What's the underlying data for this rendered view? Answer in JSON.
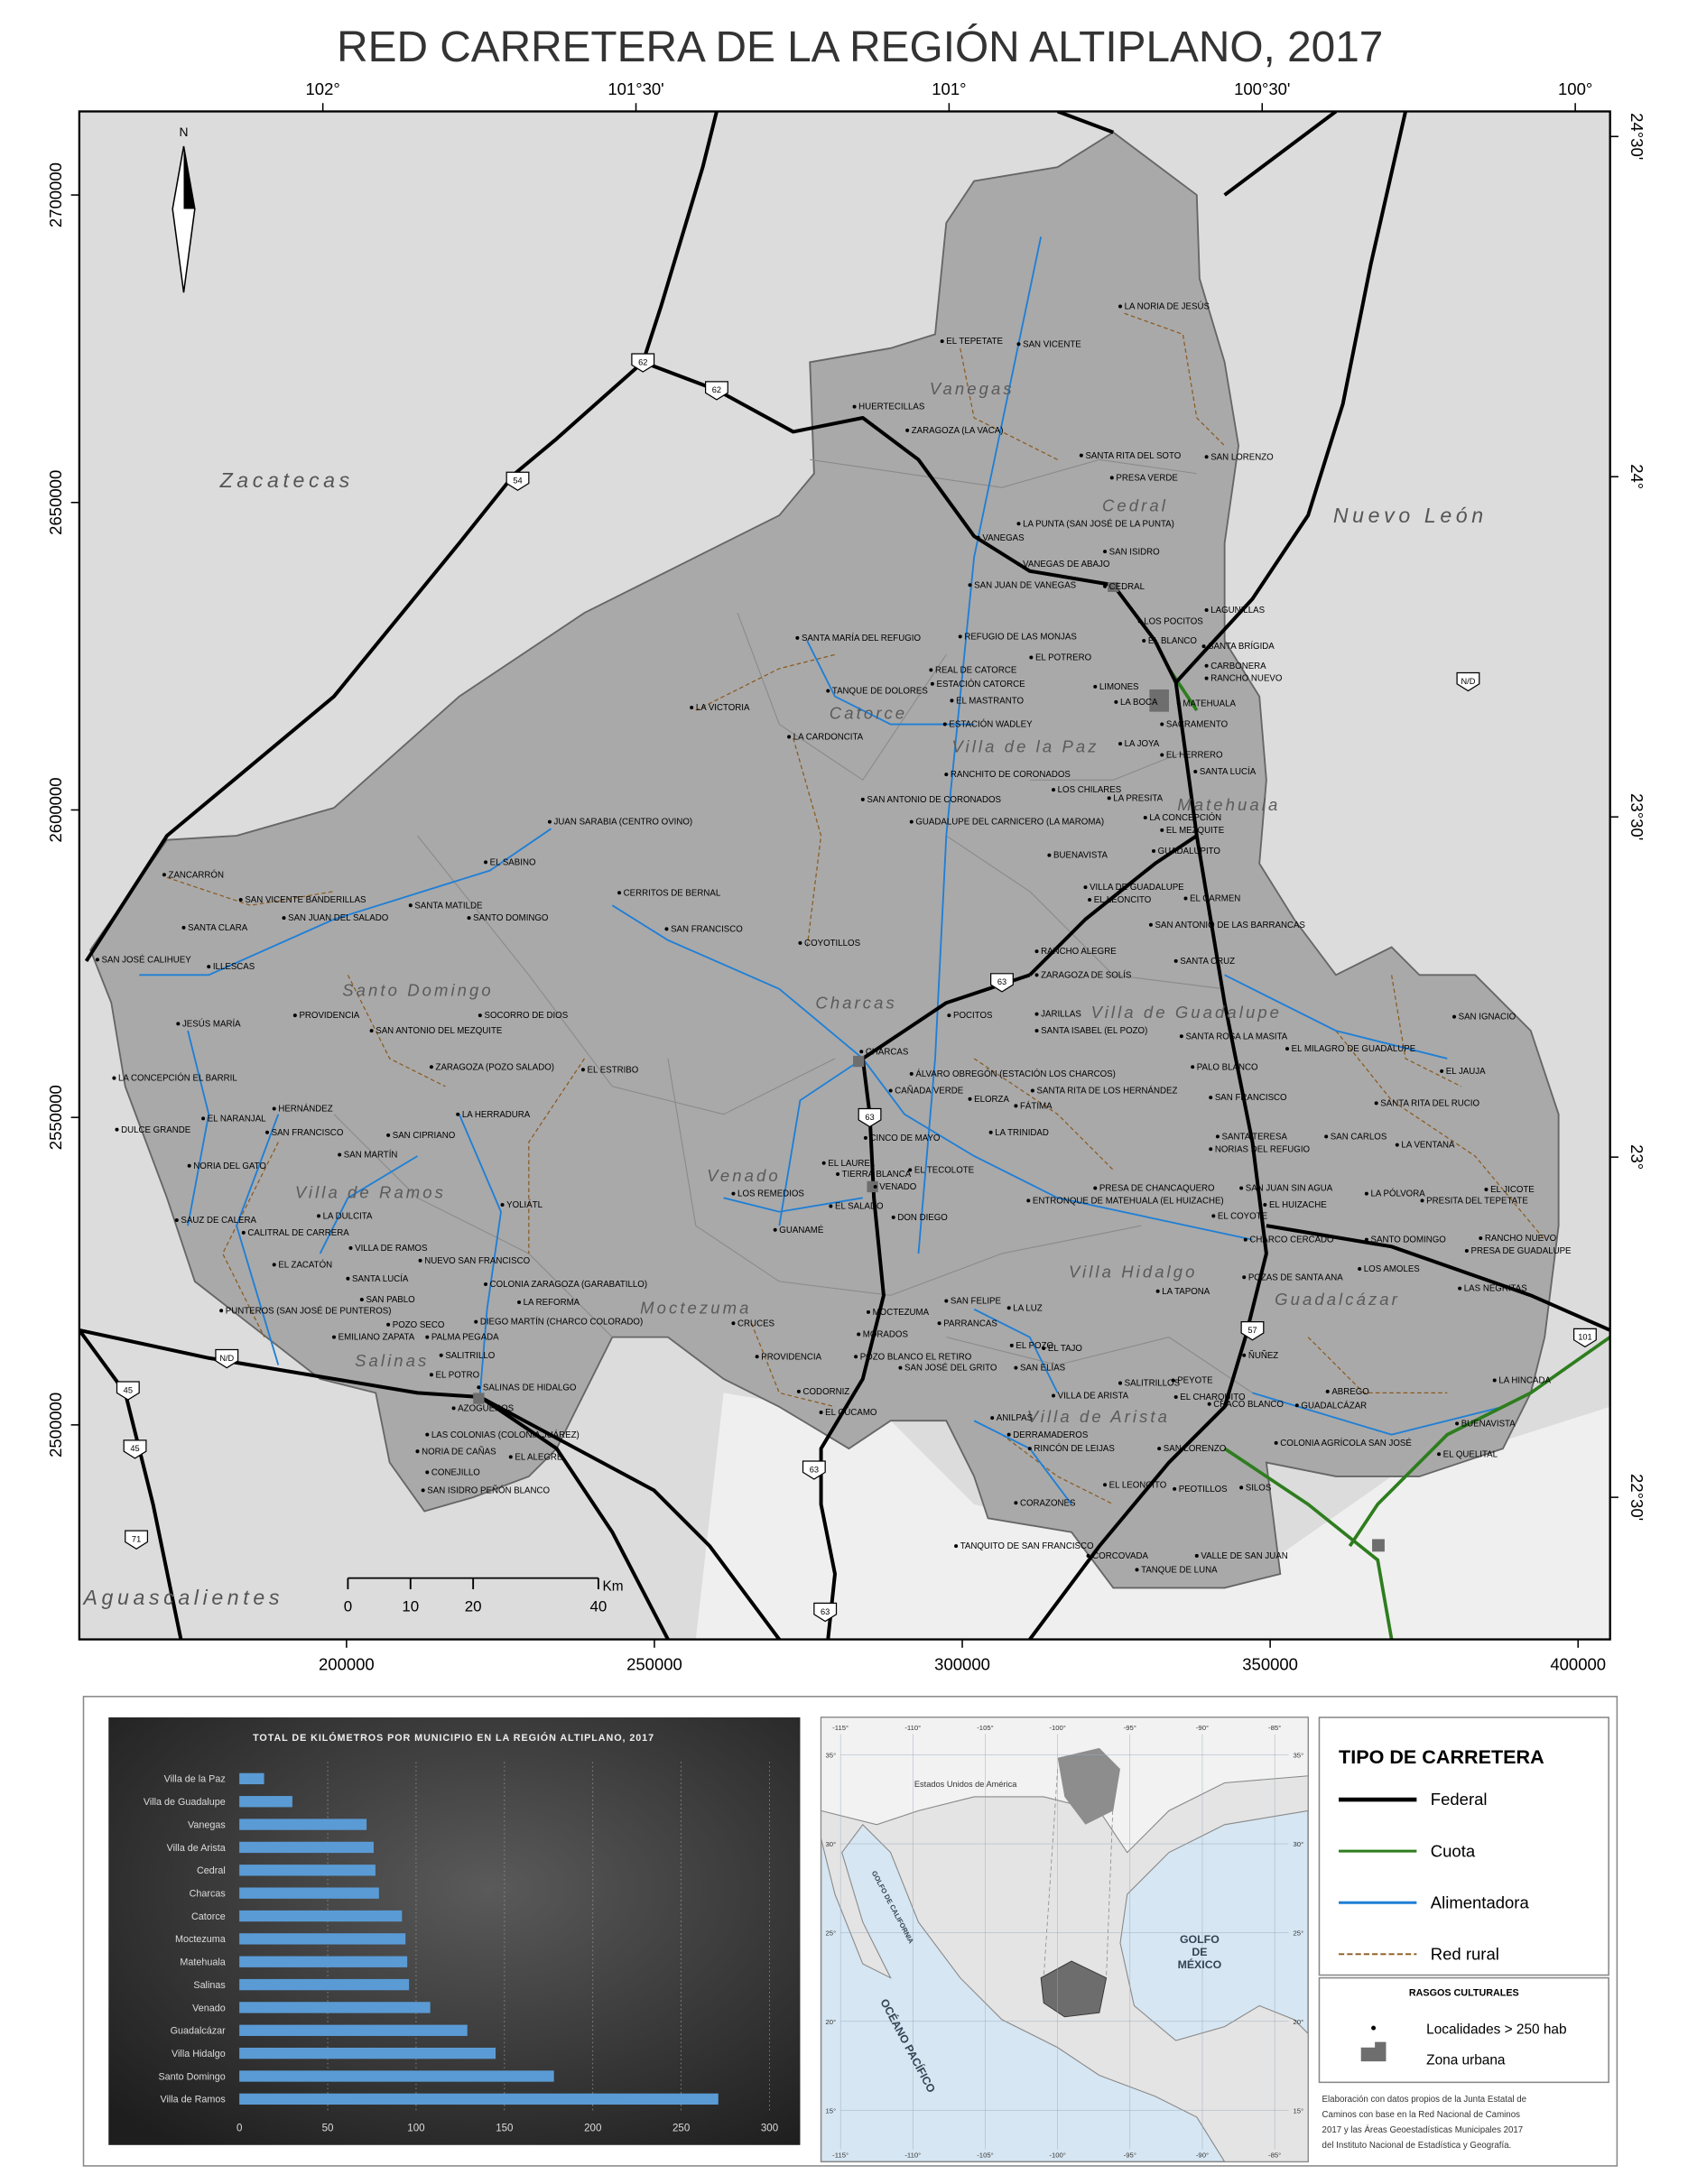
{
  "title": "RED CARRETERA DE LA REGIÓN ALTIPLANO, 2017",
  "map": {
    "lon_ticks": [
      {
        "value": -102,
        "label": "102°"
      },
      {
        "value": -101.5,
        "label": "101°30'"
      },
      {
        "value": -101,
        "label": "101°"
      },
      {
        "value": -100.5,
        "label": "100°30'"
      },
      {
        "value": -100,
        "label": "100°"
      }
    ],
    "lat_ticks": [
      {
        "value": 24.5,
        "label": "24°30'"
      },
      {
        "value": 24,
        "label": "24°"
      },
      {
        "value": 23.5,
        "label": "23°30'"
      },
      {
        "value": 23,
        "label": "23°"
      },
      {
        "value": 22.5,
        "label": "22°30'"
      }
    ],
    "easting_ticks": [
      200000,
      250000,
      300000,
      350000,
      400000
    ],
    "northing_ticks": [
      2500000,
      2550000,
      2600000,
      2650000,
      2700000
    ],
    "north_label": "N",
    "states": [
      "Zacatecas",
      "Nuevo León",
      "Aguascalientes"
    ],
    "municipalities": [
      "Vanegas",
      "Cedral",
      "Catorce",
      "Villa de la Paz",
      "Matehuala",
      "Santo Domingo",
      "Charcas",
      "Villa de Guadalupe",
      "Venado",
      "Villa de Ramos",
      "Moctezuma",
      "Villa Hidalgo",
      "Guadalcázar",
      "Salinas",
      "Villa de Arista"
    ],
    "shields": [
      "62",
      "62",
      "54",
      "63",
      "63",
      "63",
      "63",
      "57",
      "101",
      "45",
      "45",
      "71",
      "N/D",
      "N/D"
    ],
    "localities": [
      "LA NORIA DE JESÚS",
      "EL TEPETATE",
      "SAN VICENTE",
      "HUERTECILLAS",
      "ZARAGOZA (LA VACA)",
      "SANTA RITA DEL SOTO",
      "SAN LORENZO",
      "PRESA VERDE",
      "LA PUNTA (SAN JOSÉ DE LA PUNTA)",
      "VANEGAS",
      "SAN ISIDRO",
      "VANEGAS DE ABAJO",
      "SAN JUAN DE VANEGAS",
      "CEDRAL",
      "LAGUNILLAS",
      "LOS POCITOS",
      "SANTA MARÍA DEL REFUGIO",
      "REFUGIO DE LAS MONJAS",
      "EL BLANCO",
      "SANTA BRÍGIDA",
      "EL POTRERO",
      "CARBONERA",
      "REAL DE CATORCE",
      "RANCHO NUEVO",
      "ESTACIÓN CATORCE",
      "LIMONES",
      "TANQUE DE DOLORES",
      "EL MASTRANTO",
      "LA BOCA",
      "MATEHUALA",
      "LA VICTORIA",
      "ESTACIÓN WADLEY",
      "SACRAMENTO",
      "LA CARDONCITA",
      "LA JOYA",
      "EL HERRERO",
      "RANCHITO DE CORONADOS",
      "SANTA LUCÍA",
      "LOS CHILARES",
      "SAN ANTONIO DE CORONADOS",
      "LA PRESITA",
      "LA CONCEPCIÓN",
      "JUAN SARABIA (CENTRO OVINO)",
      "GUADALUPE DEL CARNICERO (LA MAROMA)",
      "EL MEZQUITE",
      "BUENAVISTA",
      "GUADALUPITO",
      "EL SABINO",
      "ZANCARRÓN",
      "VILLA DE GUADALUPE",
      "EL LEONCITO",
      "EL CARMEN",
      "CERRITOS DE BERNAL",
      "SAN VICENTE BANDERILLAS",
      "SANTA MATILDE",
      "SAN JUAN DEL SALADO",
      "SANTO DOMINGO",
      "SANTA CLARA",
      "SAN ANTONIO DE LAS BARRANCAS",
      "SAN FRANCISCO",
      "COYOTILLOS",
      "RANCHO ALEGRE",
      "SAN JOSÉ CALIHUEY",
      "ILLESCAS",
      "SANTA CRUZ",
      "ZARAGOZA DE SOLÍS",
      "POCITOS",
      "JARILLAS",
      "PROVIDENCIA",
      "SOCORRO DE DIOS",
      "SAN IGNACIO",
      "JESÚS MARÍA",
      "SAN ANTONIO DEL MEZQUITE",
      "SANTA ISABEL (EL POZO)",
      "SANTA ROSA LA MASITA",
      "CHARCAS",
      "EL MILAGRO DE GUADALUPE",
      "EL JAUJA",
      "ZARAGOZA (POZO SALADO)",
      "EL ESTRIBO",
      "PALO BLANCO",
      "LA CONCEPCIÓN EL BARRIL",
      "ÁLVARO OBREGÓN (ESTACIÓN LOS CHARCOS)",
      "CAÑADA VERDE",
      "SANTA RITA DE LOS HERNÁNDEZ",
      "SAN FRANCISCO",
      "SANTA RITA DEL RUCIO",
      "ELORZA",
      "FÁTIMA",
      "HERNÁNDEZ",
      "LA HERRADURA",
      "EL NARANJAL",
      "DULCE GRANDE",
      "SAN FRANCISCO",
      "SAN CIPRIANO",
      "LA TRINIDAD",
      "CINCO DE MAYO",
      "SANTA TERESA",
      "SAN CARLOS",
      "NORIAS DEL REFUGIO",
      "LA VENTANA",
      "SAN MARTÍN",
      "NORIA DEL GATO",
      "EL LAUREL",
      "TIERRA BLANCA",
      "EL TECOLOTE",
      "VENADO",
      "LOS REMEDIOS",
      "PRESA DE CHANCAQUERO",
      "SAN JUAN SIN AGUA",
      "LA PÓLVORA",
      "EL JICOTE",
      "PRESITA DEL TEPETATE",
      "ENTRONQUE DE MATEHUALA (EL HUIZACHE)",
      "EL HUIZACHE",
      "YOLIÁTL",
      "EL SALADO",
      "EL COYOTE",
      "DON DIEGO",
      "SAUZ DE CALERA",
      "LA DULCITA",
      "GUANAMÉ",
      "CALITRAL DE CARRERA",
      "CHARCO CERCADO",
      "SANTO DOMINGO",
      "RANCHO NUEVO",
      "PRESA DE GUADALUPE",
      "VILLA DE RAMOS",
      "NUEVO SAN FRANCISCO",
      "EL ZACATÓN",
      "LOS AMOLES",
      "POZAS DE SANTA ANA",
      "SANTA LUCÍA",
      "COLONIA ZARAGOZA (GARABATILLO)",
      "LAS NEGRITAS",
      "LA TAPONA",
      "SAN PABLO",
      "LA REFORMA",
      "SAN FELIPE",
      "PUNTEROS (SAN JOSÉ DE PUNTEROS)",
      "LA LUZ",
      "MOCTEZUMA",
      "POZO SECO",
      "DIEGO MARTÍN (CHARCO COLORADO)",
      "CRUCES",
      "PARRANCAS",
      "EMILIANO ZAPATA",
      "PALMA PEGADA",
      "MORADOS",
      "EL POZO",
      "EL TAJO",
      "ÑUÑEZ",
      "SALITRILLO",
      "PROVIDENCIA",
      "POZO BLANCO EL RETIRO",
      "SAN ELÍAS",
      "SAN JOSÉ DEL GRITO",
      "EL POTRO",
      "SALINAS DE HIDALGO",
      "CODORNIZ",
      "PEYOTE",
      "SALITRILLOS",
      "ABREGO",
      "LA HINCADA",
      "VILLA DE ARISTA",
      "EL CHARQUITO",
      "CHACO BLANCO",
      "GUADALCÁZAR",
      "AZOGUEROS",
      "EL CÚCAMO",
      "BUENAVISTA",
      "LAS COLONIAS (COLONIA JUÁREZ)",
      "DERRAMADEROS",
      "ANILPAS",
      "COLONIA AGRÍCOLA SAN JOSÉ",
      "NORIA DE CAÑAS",
      "EL ALEGRE",
      "RINCÓN DE LEIJAS",
      "SAN LORENZO",
      "EL QUELITAL",
      "CONEJILLO",
      "SAN ISIDRO PEÑÓN BLANCO",
      "EL LEONCITO",
      "PEOTILLOS",
      "SILOS",
      "CORAZONES",
      "TANQUITO DE SAN FRANCISCO",
      "CORCOVADA",
      "VALLE DE SAN JUAN",
      "TANQUE DE LUNA"
    ],
    "scale_bar": {
      "ticks": [
        0,
        10,
        20,
        40
      ],
      "unit": "Km"
    }
  },
  "chart_data": {
    "type": "bar",
    "orientation": "horizontal",
    "title": "TOTAL DE KILÓMETROS POR MUNICIPIO EN LA REGIÓN ALTIPLANO, 2017",
    "categories": [
      "Villa de la Paz",
      "Villa de Guadalupe",
      "Vanegas",
      "Villa de Arista",
      "Cedral",
      "Charcas",
      "Catorce",
      "Moctezuma",
      "Matehuala",
      "Salinas",
      "Venado",
      "Guadalcázar",
      "Villa Hidalgo",
      "Santo Domingo",
      "Villa de Ramos"
    ],
    "values": [
      14,
      30,
      72,
      76,
      77,
      79,
      92,
      94,
      95,
      96,
      108,
      129,
      145,
      178,
      271
    ],
    "color": "#5b9bd5",
    "xlim": [
      0,
      300
    ],
    "xticks": [
      0,
      50,
      100,
      150,
      200,
      250,
      300
    ],
    "grid": true
  },
  "inset": {
    "lon_ticks": [
      {
        "value": -115,
        "label": "-115°"
      },
      {
        "value": -110,
        "label": "-110°"
      },
      {
        "value": -105,
        "label": "-105°"
      },
      {
        "value": -100,
        "label": "-100°"
      },
      {
        "value": -95,
        "label": "-95°"
      },
      {
        "value": -90,
        "label": "-90°"
      },
      {
        "value": -85,
        "label": "-85°"
      }
    ],
    "lat_ticks": [
      {
        "value": 35,
        "label": "35°"
      },
      {
        "value": 30,
        "label": "30°"
      },
      {
        "value": 25,
        "label": "25°"
      },
      {
        "value": 20,
        "label": "20°"
      },
      {
        "value": 15,
        "label": "15°"
      }
    ],
    "labels": [
      "Estados Unidos de América",
      "GOLFO",
      "DE",
      "MÉXICO",
      "OCÉANO PACÍFICO",
      "GOLFO DE CALIFORNIA"
    ]
  },
  "legend": {
    "title": "TIPO DE CARRETERA",
    "items": [
      {
        "name": "Federal",
        "color": "#000000"
      },
      {
        "name": "Cuota",
        "color": "#2e7d1e"
      },
      {
        "name": "Alimentadora",
        "color": "#1f7fd6"
      },
      {
        "name": "Red rural",
        "color": "#8b5a1e"
      }
    ],
    "cultural_title": "RASGOS CULTURALES",
    "cultural_items": [
      "Localidades > 250 hab",
      "Zona urbana"
    ],
    "note": [
      "Elaboración con datos propios de la Junta Estatal de",
      "Caminos con base en la Red Nacional de Caminos",
      "2017 y las Áreas Geoestadísticas Municipales 2017",
      "del Instituto Nacional de Estadística y Geografía."
    ]
  }
}
